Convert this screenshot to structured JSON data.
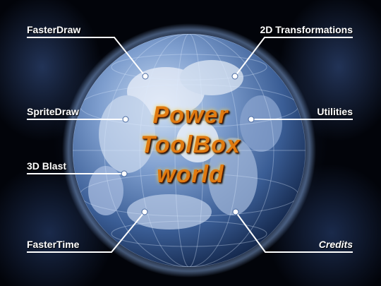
{
  "title": {
    "line1": "Power",
    "line2": "ToolBox",
    "line3": "world"
  },
  "menu": {
    "faster_draw": "FasterDraw",
    "sprite_draw": "SpriteDraw",
    "blast_3d": "3D Blast",
    "faster_time": "FasterTime",
    "transformations_2d": "2D Transformations",
    "utilities": "Utilities",
    "credits": "Credits"
  },
  "colors": {
    "title": "#e07a10",
    "labels": "#ffffff",
    "ocean": "#3a5d95",
    "background": "#02040a"
  }
}
